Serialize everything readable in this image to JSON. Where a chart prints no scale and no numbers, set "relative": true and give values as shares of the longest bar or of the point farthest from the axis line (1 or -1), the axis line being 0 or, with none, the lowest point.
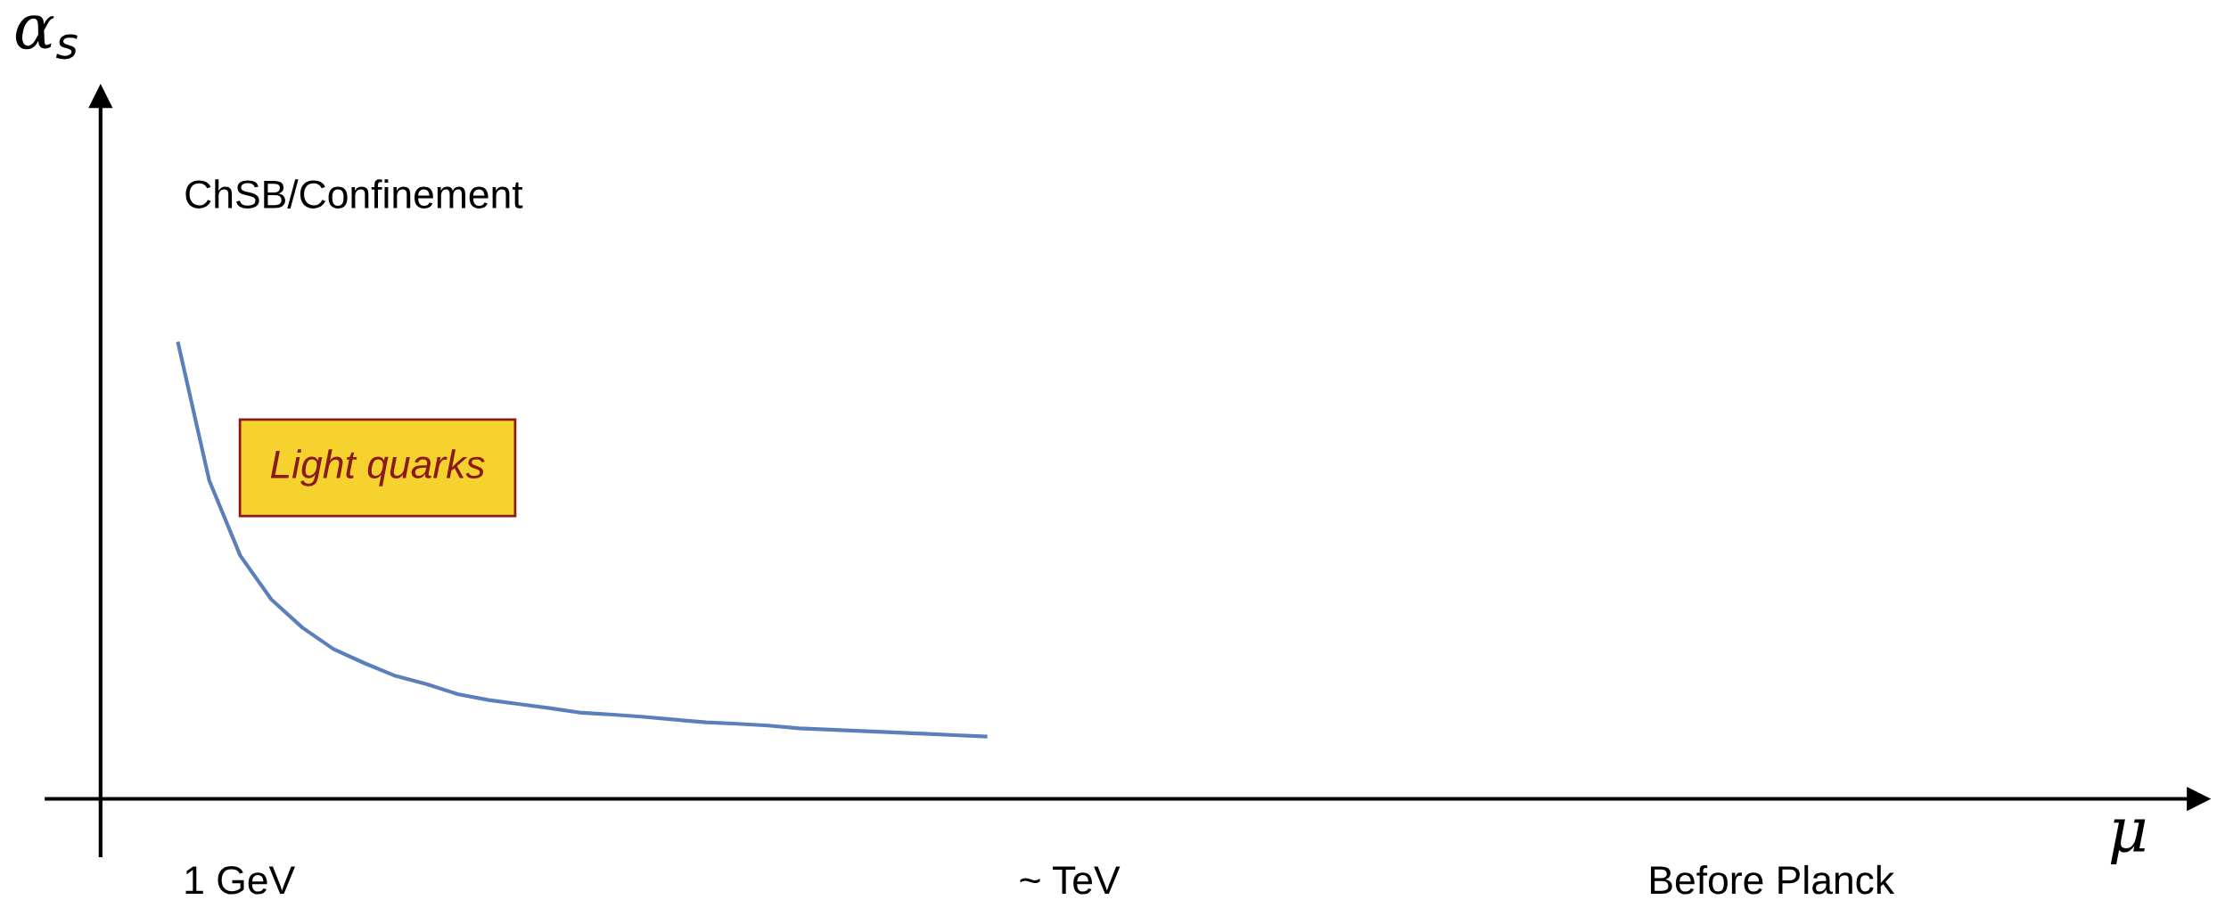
{
  "chart_data": {
    "type": "line",
    "relative": true,
    "ylabel": "α$_{s}$",
    "categories": [
      null,
      null,
      null,
      null,
      null,
      null,
      null,
      null,
      null,
      null,
      null,
      null,
      null,
      null,
      null,
      null,
      null,
      null,
      null,
      null,
      null,
      null,
      null,
      null,
      null,
      null,
      null
    ],
    "series": [
      {
        "color": "#5b7fba",
        "values": [
          1.0,
          0.699,
          0.534,
          0.438,
          0.376,
          0.329,
          0.298,
          0.27,
          0.252,
          0.23,
          0.217,
          0.208,
          0.199,
          0.189,
          0.185,
          0.18,
          0.174,
          0.168,
          0.165,
          0.161,
          0.155,
          0.152,
          0.149,
          0.146,
          0.143,
          0.14,
          0.137
        ]
      }
    ],
    "grid": false,
    "marker": "none",
    "line_style": "solid",
    "annotations": [
      "ChSB/Confinement",
      "Light quarks",
      "1 GeV",
      "~ TeV",
      "Before Planck",
      "μ"
    ]
  }
}
